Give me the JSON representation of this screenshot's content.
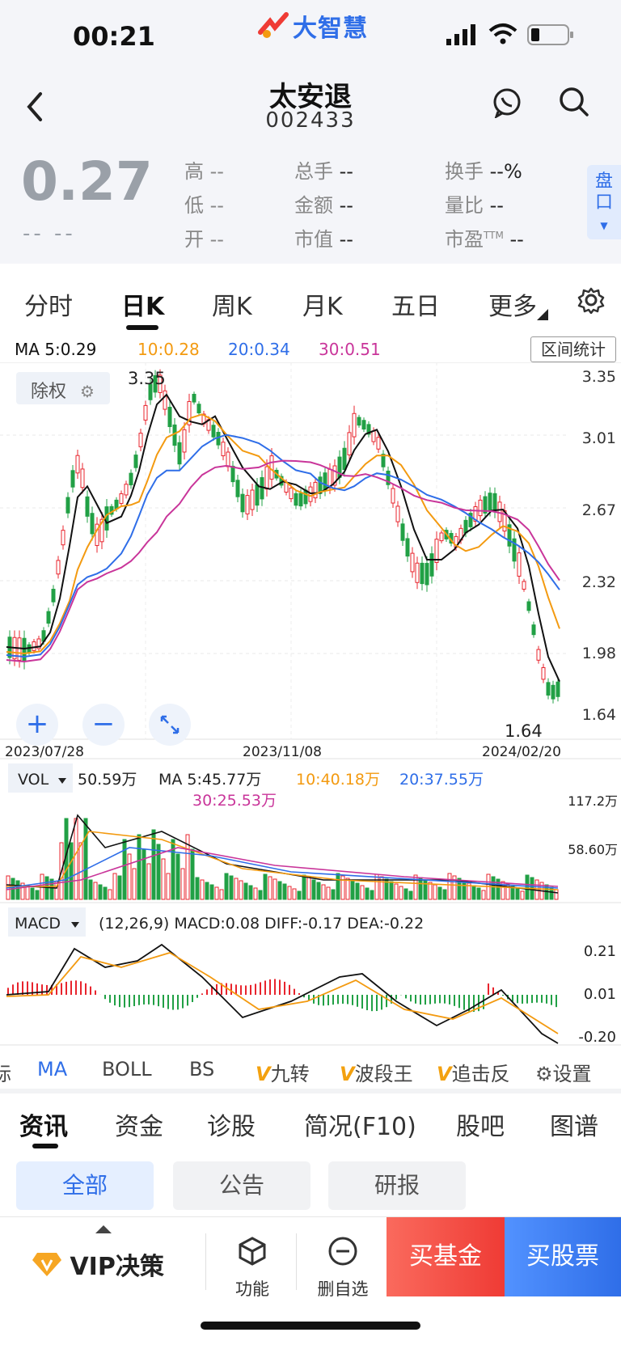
{
  "status_bar": {
    "time": "00:21",
    "brand": "大智慧"
  },
  "header": {
    "stock_name": "太安退",
    "stock_code": "002433"
  },
  "quote": {
    "price": "0.27",
    "change": "--  --",
    "high_label": "高",
    "high": "--",
    "low_label": "低",
    "low": "--",
    "open_label": "开",
    "open": "--",
    "volume_label": "总手",
    "volume": "--",
    "amount_label": "金额",
    "amount": "--",
    "mktcap_label": "市值",
    "mktcap": "--",
    "turnover_label": "换手",
    "turnover": "--%",
    "vol_ratio_label": "量比",
    "vol_ratio": "--",
    "pe_label": "市盈",
    "pe_sup": "TTM",
    "pe": "--",
    "pankou": "盘口"
  },
  "period_tabs": [
    "分时",
    "日K",
    "周K",
    "月K",
    "五日",
    "更多"
  ],
  "ma_legend": {
    "ma5": "MA 5:0.29",
    "ma10": "10:0.28",
    "ma20": "20:0.34",
    "ma30": "30:0.51",
    "range_button": "区间统计"
  },
  "chart": {
    "adjust_label": "除权",
    "price_ticks": [
      "3.35",
      "3.01",
      "2.67",
      "2.32",
      "1.98",
      "1.64"
    ],
    "max_label": "3.35",
    "min_label": "1.64",
    "dates": [
      "2023/07/28",
      "2023/11/08",
      "2024/02/20"
    ],
    "vol_legend": {
      "name": "VOL",
      "vol": "50.59万",
      "ma5": "MA 5:45.77万",
      "ma10": "10:40.18万",
      "ma20": "20:37.55万",
      "ma30": "30:25.53万"
    },
    "vol_ticks": [
      "117.2万",
      "58.60万"
    ],
    "macd_legend": {
      "name": "MACD",
      "params": "(12,26,9) MACD:0.08 DIFF:-0.17 DEA:-0.22"
    },
    "macd_ticks": [
      "0.21",
      "0.01",
      "-0.20"
    ]
  },
  "colors": {
    "up": "#e8242d",
    "down": "#21a045",
    "ma5": "#111111",
    "ma10": "#f39a10",
    "ma20": "#2f6ee8",
    "ma30": "#c9359a",
    "accent": "#2f6ee8"
  },
  "indicator_tabs": [
    "标",
    "MA",
    "BOLL",
    "BS",
    "九转",
    "波段王",
    "追击反",
    "设置"
  ],
  "info_tabs": [
    "资讯",
    "资金",
    "诊股",
    "简况(F10)",
    "股吧",
    "图谱"
  ],
  "filters": [
    "全部",
    "公告",
    "研报"
  ],
  "bottom_bar": {
    "vip": "VIP决策",
    "func": "功能",
    "remove": "删自选",
    "buy_fund": "买基金",
    "buy_stock": "买股票"
  }
}
